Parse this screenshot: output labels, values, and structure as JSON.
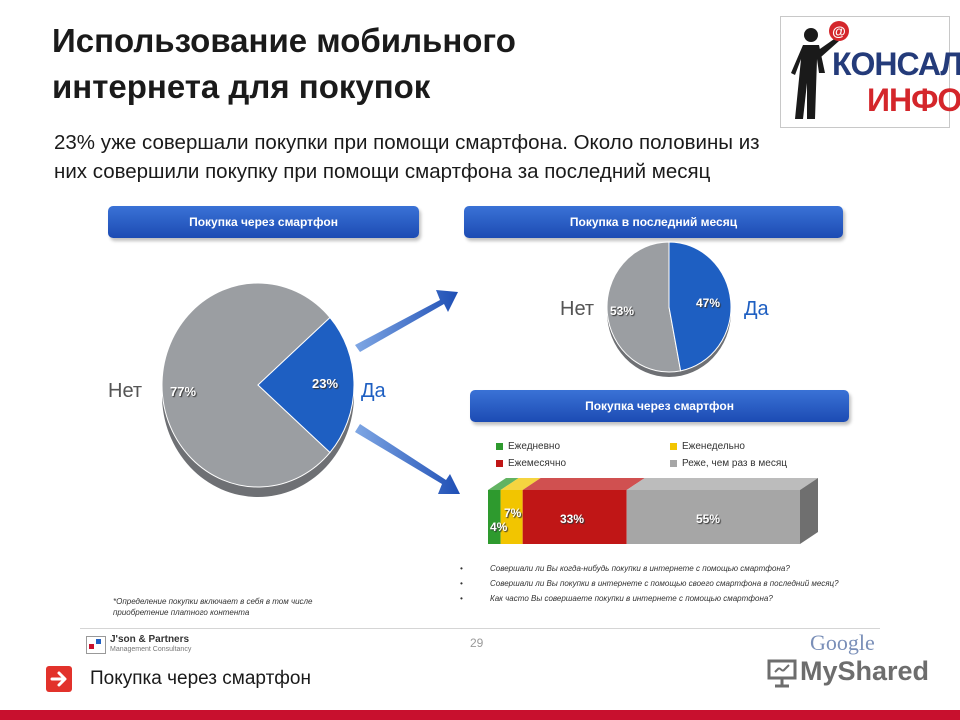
{
  "title_line1": "Использование мобильного",
  "title_line2": "интернета для покупок",
  "subtitle_line1": "23% уже совершали покупки при помощи смартфона. Около половины из",
  "subtitle_line2": "них совершили покупку при помощи смартфона за последний месяц",
  "logo": {
    "line1": "КОНСАЛТ",
    "line2": "ИНФО",
    "at": "@"
  },
  "headers": [
    "Покупка через смартфон",
    "Покупка в последний месяц",
    "Покупка через смартфон"
  ],
  "chart_data": [
    {
      "type": "pie",
      "title": "Покупка через смартфон",
      "categories": [
        "Нет",
        "Да"
      ],
      "values": [
        77,
        23
      ],
      "value_labels": [
        "77%",
        "23%"
      ],
      "colors": [
        "#9b9ea2",
        "#1e5fc2"
      ]
    },
    {
      "type": "pie",
      "title": "Покупка в последний месяц",
      "categories": [
        "Нет",
        "Да"
      ],
      "values": [
        53,
        47
      ],
      "value_labels": [
        "53%",
        "47%"
      ],
      "colors": [
        "#9b9ea2",
        "#1e5fc2"
      ]
    },
    {
      "type": "bar",
      "title": "Покупка через смартфон",
      "stacked": true,
      "series": [
        {
          "name": "Ежедневно",
          "value": 4,
          "label": "4%",
          "color": "#2e9a2e"
        },
        {
          "name": "Еженедельно",
          "value": 7,
          "label": "7%",
          "color": "#f2c500"
        },
        {
          "name": "Ежемесячно",
          "value": 33,
          "label": "33%",
          "color": "#c01616"
        },
        {
          "name": "Реже, чем раз в месяц",
          "value": 55,
          "label": "55%",
          "color": "#a6a6a6"
        }
      ]
    }
  ],
  "questions": [
    "Совершали ли Вы когда-нибудь покупки в интернете с помощью смартфона?",
    "Совершали ли Вы покупки в интернете с помощью своего смартфона в последний месяц?",
    "Как часто Вы совершаете покупки в интернете с помощью смартфона?"
  ],
  "footnote_line1": "*Определение покупки включает в себя в том числе",
  "footnote_line2": "приобретение платного контента",
  "page_number": "29",
  "footer": {
    "brand": "J'son & Partners",
    "brand_sub": "Management Consultancy",
    "google": "Google",
    "myshared": "MyShared",
    "label": "Покупка через смартфон"
  }
}
